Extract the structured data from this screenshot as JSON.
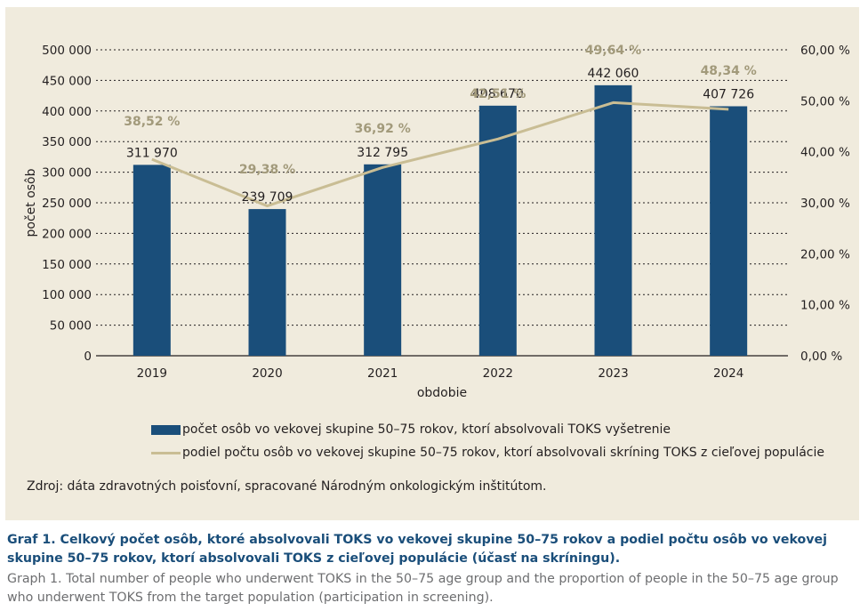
{
  "chart_data": {
    "type": "bar",
    "combo": "bar+line",
    "categories": [
      "2019",
      "2020",
      "2021",
      "2022",
      "2023",
      "2024"
    ],
    "series": [
      {
        "name": "počet osôb vo vekovej skupine 50–75 rokov, ktorí absolvovali TOKS vyšetrenie",
        "type": "bar",
        "axis": "left",
        "color": "#1a4e7a",
        "values": [
          311970,
          239709,
          312795,
          408670,
          442060,
          407726
        ],
        "labels": [
          "311 970",
          "239 709",
          "312 795",
          "408 670",
          "442 060",
          "407 726"
        ]
      },
      {
        "name": "podiel počtu osôb vo vekovej skupine 50–75 rokov, ktorí absolvovali skríning TOKS z cieľovej populácie",
        "type": "line",
        "axis": "right",
        "color": "#c9bd94",
        "values": [
          38.52,
          29.38,
          36.92,
          42.51,
          49.64,
          48.34
        ],
        "labels": [
          "38,52 %",
          "29,38 %",
          "36,92 %",
          "42,51 %",
          "49,64 %",
          "48,34 %"
        ]
      }
    ],
    "xlabel": "obdobie",
    "ylabel": "počet osôb",
    "ylim": [
      0,
      500000
    ],
    "y2lim": [
      0,
      60
    ],
    "yticks": [
      "0",
      "50 000",
      "100 000",
      "150 000",
      "200 000",
      "250 000",
      "300 000",
      "350 000",
      "400 000",
      "450 000",
      "500 000"
    ],
    "y2ticks": [
      "0,00 %",
      "10,00 %",
      "20,00 %",
      "30,00 %",
      "40,00 %",
      "50,00 %",
      "60,00 %"
    ],
    "grid": "horizontal-dotted",
    "legend_position": "bottom",
    "background": "#f0ebdd"
  },
  "legend": {
    "bar_label": "počet osôb vo vekovej skupine 50–75 rokov, ktorí absolvovali TOKS vyšetrenie",
    "line_label": "podiel počtu osôb vo vekovej skupine 50–75 rokov, ktorí absolvovali skríning TOKS z cieľovej populácie"
  },
  "source": "Zdroj: dáta zdravotných poisťovní, spracované Národným onkologickým inštitútom.",
  "caption": {
    "sk": "Graf 1. Celkový počet osôb, ktoré absolvovali TOKS vo vekovej skupine 50–75 rokov a podiel počtu osôb vo vekovej skupine 50–75 rokov, ktorí absolvovali TOKS z cieľovej populácie (účasť na skríningu).",
    "en": "Graph 1. Total number of people who underwent TOKS in the 50–75 age group and the proportion of people in the 50–75 age group who underwent TOKS from the target population (participation in screening)."
  }
}
